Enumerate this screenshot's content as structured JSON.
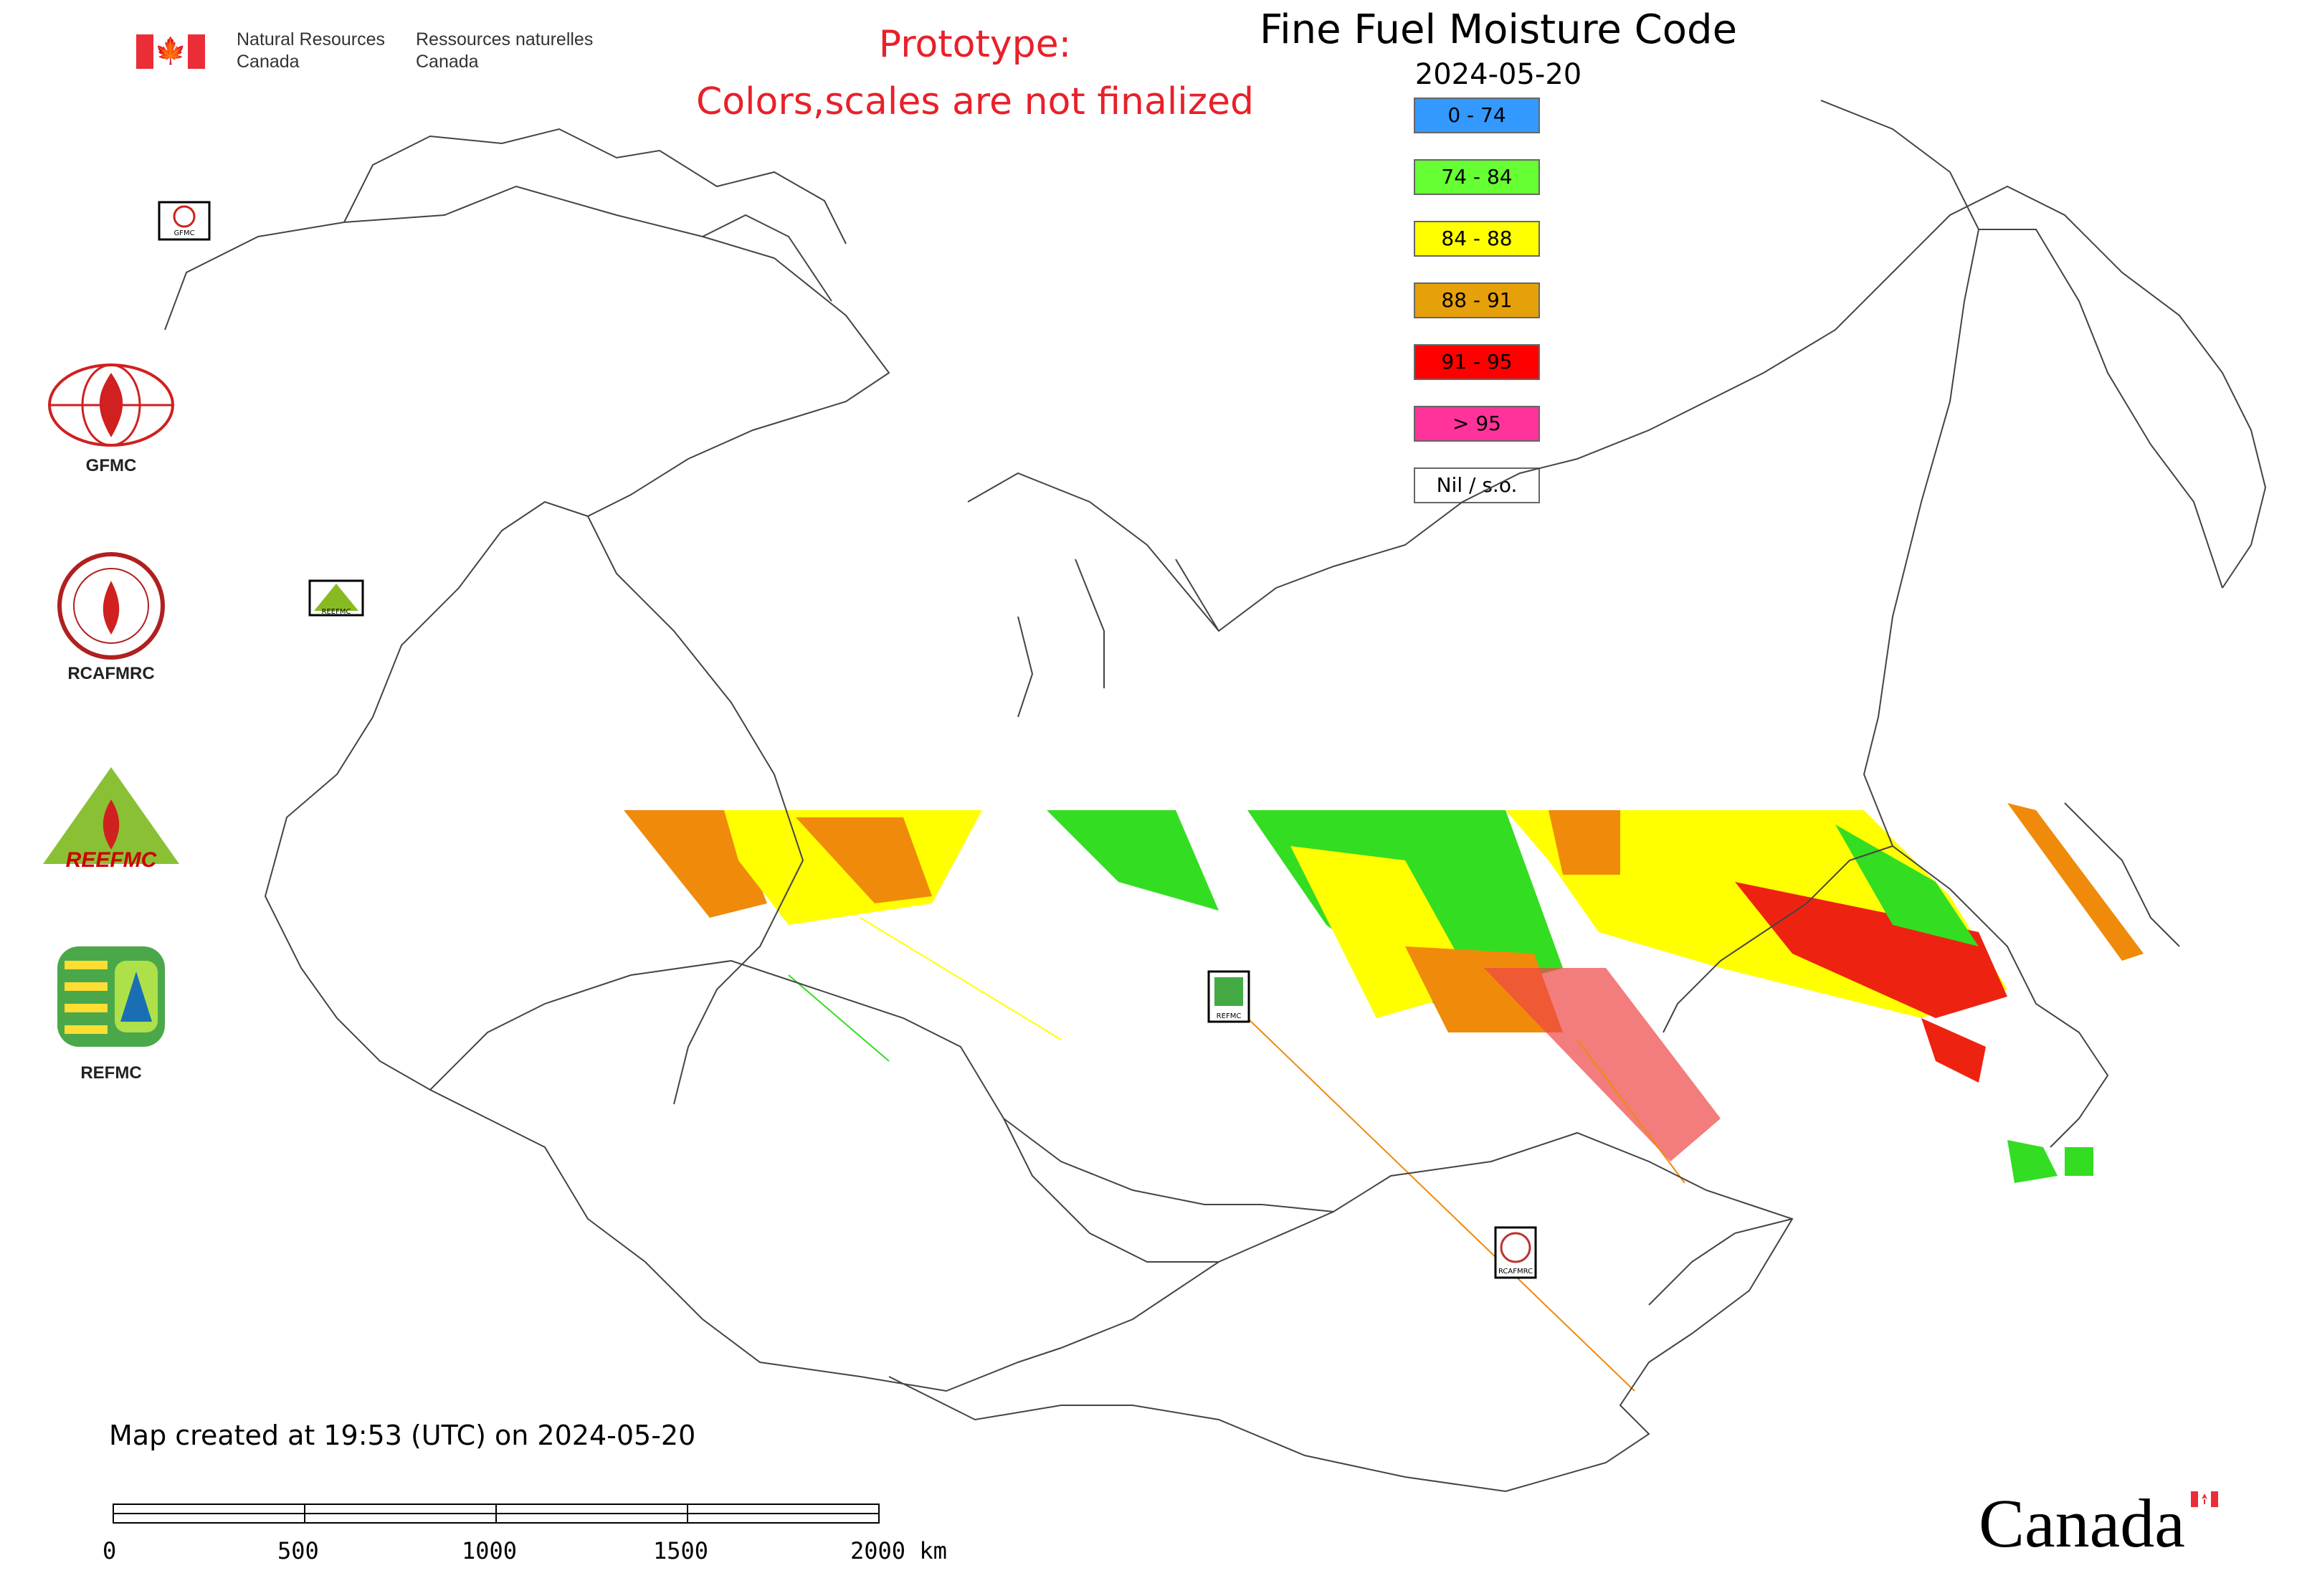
{
  "government": {
    "name_en": "Natural Resources\nCanada",
    "name_fr": "Ressources naturelles\nCanada"
  },
  "notice": {
    "line1": "Prototype:",
    "line2": "Colors,scales are not finalized",
    "color": "#e8202a"
  },
  "map": {
    "title": "Fine Fuel Moisture Code",
    "date": "2024-05-20",
    "created": "Map created at 19:53 (UTC) on 2024-05-20"
  },
  "legend": [
    {
      "label": "0 - 74",
      "color": "#3399ff"
    },
    {
      "label": "74 - 84",
      "color": "#66ff33"
    },
    {
      "label": "84 - 88",
      "color": "#ffff00"
    },
    {
      "label": "88 - 91",
      "color": "#e6a00a"
    },
    {
      "label": "91 - 95",
      "color": "#ff0000"
    },
    {
      "label": "> 95",
      "color": "#ff3399"
    },
    {
      "label": "Nil / s.o.",
      "color": "#ffffff"
    }
  ],
  "side_logos": [
    {
      "caption": "GFMC",
      "icon": "gfmc-globe-fire-logo"
    },
    {
      "caption": "RCAFMRC",
      "icon": "rcafmrc-seal-logo"
    },
    {
      "caption": "REEFMC",
      "icon": "reefmc-triangle-logo"
    },
    {
      "caption": "REFMC",
      "icon": "refmc-sigma-logo"
    }
  ],
  "map_markers": [
    "GFMC",
    "REEFMC",
    "REFMC",
    "RCAFMRC"
  ],
  "scale_bar": {
    "labels": [
      "0",
      "500",
      "1000",
      "1500",
      "2000 km"
    ]
  },
  "wordmark": "Canada"
}
